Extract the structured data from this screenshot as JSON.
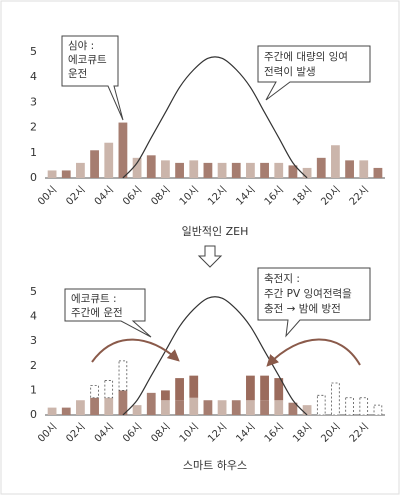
{
  "chart_data": [
    {
      "type": "bar",
      "stacked": true,
      "categories": [
        "00시",
        null,
        "02시",
        null,
        "04시",
        null,
        "06시",
        null,
        "08시",
        null,
        "10시",
        null,
        "12시",
        null,
        "14시",
        null,
        "16시",
        null,
        "18시",
        null,
        "20시",
        null,
        "22시",
        null
      ],
      "ylim": [
        0,
        5
      ],
      "yticks": [
        0,
        1,
        2,
        3,
        4,
        5
      ],
      "series": [
        {
          "colors": [
            "#cbb5ab",
            "#a67d70"
          ],
          "values": [
            0.3,
            0.3,
            0.6,
            1.1,
            1.4,
            2.2,
            0.8,
            0.9,
            0.7,
            0.6,
            0.7,
            0.6,
            0.6,
            0.6,
            0.6,
            0.6,
            0.6,
            0.5,
            0.4,
            0.8,
            1.3,
            0.7,
            0.7,
            0.4
          ]
        },
        {
          "type": "line",
          "color": "#333333",
          "values": [
            null,
            null,
            null,
            null,
            null,
            0,
            0.6,
            1.6,
            2.6,
            3.6,
            4.3,
            4.75,
            4.75,
            4.3,
            3.6,
            2.6,
            1.6,
            0.6,
            0,
            null,
            null,
            null,
            null,
            null
          ]
        }
      ],
      "annotations": [
        [
          "심야 :",
          "에코큐트",
          "운전"
        ],
        [
          "주간에 대량의 잉여",
          "전력이 발생"
        ]
      ],
      "x_label": "일반적인 ZEH"
    },
    {
      "type": "bar",
      "stacked": true,
      "categories": [
        "00시",
        null,
        "02시",
        null,
        "04시",
        null,
        "06시",
        null,
        "08시",
        null,
        "10시",
        null,
        "12시",
        null,
        "14시",
        null,
        "16시",
        null,
        "18시",
        null,
        "20시",
        null,
        "22시",
        null
      ],
      "ylim": [
        0,
        5
      ],
      "yticks": [
        0,
        1,
        2,
        3,
        4,
        5
      ],
      "series": [
        {
          "colors": [
            "#cbb5ab",
            "#a67d70"
          ],
          "values": [
            0.3,
            0.3,
            0.6,
            0.7,
            0.7,
            1.0,
            0.4,
            0.9,
            0.6,
            0.6,
            0.7,
            0.6,
            0.6,
            0.6,
            0.6,
            0.6,
            0.6,
            0.5,
            0.4,
            null,
            null,
            null,
            null,
            null
          ]
        },
        {
          "color": "#9b6b5c",
          "values": [
            null,
            null,
            null,
            null,
            null,
            null,
            null,
            null,
            0.4,
            0.9,
            0.9,
            null,
            null,
            null,
            1.0,
            1.0,
            0.9,
            null,
            null,
            null,
            null,
            null,
            null,
            null
          ]
        },
        {
          "style": "dashed",
          "color": "#555555",
          "values": [
            null,
            null,
            null,
            0.5,
            0.7,
            1.2,
            null,
            null,
            null,
            null,
            null,
            null,
            null,
            null,
            null,
            null,
            null,
            null,
            null,
            0.8,
            1.3,
            0.7,
            0.7,
            0.4
          ]
        },
        {
          "type": "line",
          "color": "#333333",
          "values": [
            null,
            null,
            null,
            null,
            null,
            0,
            0.6,
            1.6,
            2.6,
            3.6,
            4.3,
            4.75,
            4.75,
            4.3,
            3.6,
            2.6,
            1.6,
            0.6,
            0,
            null,
            null,
            null,
            null,
            null
          ]
        }
      ],
      "annotations": [
        [
          "에코큐트 :",
          "주간에 운전"
        ],
        [
          "축전지 :",
          "주간 PV 잉여전력을",
          "충전 → 밤에 방전"
        ]
      ],
      "x_label": "스마트 하우스"
    }
  ]
}
